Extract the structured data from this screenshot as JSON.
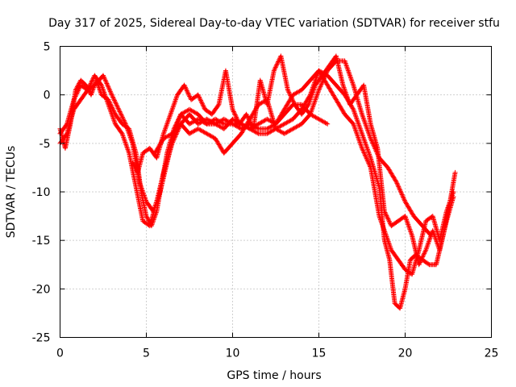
{
  "chart_data": {
    "type": "scatter",
    "title": "Day 317 of 2025, Sidereal Day-to-day VTEC variation (SDTVAR) for receiver stfu",
    "xlabel": "GPS time / hours",
    "ylabel": "SDTVAR / TECUs",
    "xlim": [
      0,
      25
    ],
    "ylim": [
      -25,
      5
    ],
    "xticks": [
      0,
      5,
      10,
      15,
      20,
      25
    ],
    "yticks": [
      -25,
      -20,
      -15,
      -10,
      -5,
      0,
      5
    ],
    "grid": true,
    "marker": "+",
    "color": "#ff0000",
    "series": [
      {
        "points": [
          [
            0.0,
            -3.5
          ],
          [
            0.3,
            -5.5
          ],
          [
            0.6,
            -3
          ],
          [
            0.9,
            0.5
          ],
          [
            1.2,
            1.5
          ],
          [
            1.5,
            1
          ],
          [
            1.8,
            0
          ],
          [
            2.1,
            1.5
          ],
          [
            2.4,
            0
          ],
          [
            2.8,
            -0.5
          ],
          [
            3.2,
            -2
          ],
          [
            3.6,
            -3
          ],
          [
            4.0,
            -3.5
          ],
          [
            4.4,
            -6
          ],
          [
            4.7,
            -10
          ],
          [
            5.0,
            -12.5
          ],
          [
            5.3,
            -13.5
          ],
          [
            5.6,
            -12
          ],
          [
            5.9,
            -9
          ],
          [
            6.2,
            -6
          ],
          [
            6.6,
            -3.5
          ],
          [
            7.0,
            -2
          ],
          [
            7.5,
            -3
          ],
          [
            8.0,
            -2.5
          ],
          [
            8.5,
            -3
          ],
          [
            9.0,
            -2.5
          ],
          [
            9.5,
            -3
          ],
          [
            10.0,
            -3
          ],
          [
            10.5,
            -3
          ],
          [
            11.0,
            -3.5
          ],
          [
            11.5,
            -4
          ],
          [
            12.0,
            -4
          ],
          [
            12.5,
            -3.5
          ],
          [
            13.0,
            -3
          ],
          [
            13.5,
            -2.5
          ],
          [
            14.0,
            -1.5
          ],
          [
            14.5,
            0
          ],
          [
            15.0,
            2.5
          ],
          [
            15.5,
            2
          ],
          [
            16.0,
            1
          ],
          [
            16.5,
            0
          ],
          [
            17.0,
            -1.5
          ],
          [
            17.5,
            -4
          ],
          [
            18.0,
            -6.5
          ],
          [
            18.5,
            -9.5
          ],
          [
            18.8,
            -15
          ],
          [
            19.1,
            -17
          ],
          [
            19.4,
            -21.5
          ],
          [
            19.7,
            -22
          ],
          [
            20.0,
            -20
          ],
          [
            20.3,
            -17
          ],
          [
            20.6,
            -16.5
          ],
          [
            21.0,
            -17
          ],
          [
            21.4,
            -17.5
          ],
          [
            21.8,
            -17.5
          ],
          [
            22.2,
            -14.5
          ],
          [
            22.6,
            -11
          ],
          [
            22.9,
            -8
          ]
        ]
      },
      {
        "points": [
          [
            0.0,
            -4
          ],
          [
            0.4,
            -3
          ],
          [
            0.8,
            -0.5
          ],
          [
            1.2,
            1
          ],
          [
            1.6,
            0.5
          ],
          [
            2.0,
            2
          ],
          [
            2.4,
            1
          ],
          [
            2.8,
            -1
          ],
          [
            3.2,
            -3
          ],
          [
            3.6,
            -4
          ],
          [
            4.0,
            -6
          ],
          [
            4.4,
            -9.5
          ],
          [
            4.8,
            -13
          ],
          [
            5.2,
            -13.5
          ],
          [
            5.6,
            -11
          ],
          [
            6.0,
            -8
          ],
          [
            6.5,
            -5
          ],
          [
            7.0,
            -3
          ],
          [
            7.5,
            -2
          ],
          [
            8.0,
            -3
          ],
          [
            8.5,
            -2.5
          ],
          [
            9.0,
            -3
          ],
          [
            9.5,
            -3.5
          ],
          [
            10.0,
            -2.5
          ],
          [
            10.5,
            -3
          ],
          [
            11.0,
            -3.5
          ],
          [
            11.5,
            -3
          ],
          [
            12.0,
            -2.5
          ],
          [
            12.5,
            -3
          ],
          [
            13.0,
            -1.5
          ],
          [
            13.5,
            0
          ],
          [
            14.0,
            0.5
          ],
          [
            14.5,
            1.5
          ],
          [
            15.0,
            2.5
          ],
          [
            15.5,
            1
          ],
          [
            16.0,
            -0.5
          ],
          [
            16.5,
            -2
          ],
          [
            17.0,
            -3
          ],
          [
            17.5,
            -5.5
          ],
          [
            18.0,
            -7.5
          ],
          [
            18.5,
            -12.5
          ],
          [
            18.8,
            -14
          ],
          [
            19.2,
            -16
          ],
          [
            19.6,
            -17
          ],
          [
            20.0,
            -18
          ],
          [
            20.4,
            -18.5
          ],
          [
            20.8,
            -16
          ],
          [
            21.2,
            -13
          ],
          [
            21.6,
            -12.5
          ],
          [
            22.0,
            -15
          ],
          [
            22.4,
            -12
          ],
          [
            22.8,
            -10
          ]
        ]
      },
      {
        "points": [
          [
            0.0,
            -5
          ],
          [
            0.4,
            -4
          ],
          [
            0.8,
            -1.5
          ],
          [
            1.2,
            -0.5
          ],
          [
            1.6,
            0.5
          ],
          [
            2.0,
            1
          ],
          [
            2.5,
            2
          ],
          [
            3.0,
            0
          ],
          [
            3.4,
            -1.5
          ],
          [
            3.8,
            -3
          ],
          [
            4.2,
            -5
          ],
          [
            4.6,
            -9
          ],
          [
            5.0,
            -11
          ],
          [
            5.4,
            -12
          ],
          [
            5.8,
            -10
          ],
          [
            6.2,
            -7
          ],
          [
            6.6,
            -4
          ],
          [
            7.0,
            -2
          ],
          [
            7.5,
            -1.5
          ],
          [
            8.0,
            -2
          ],
          [
            8.5,
            -3
          ],
          [
            9.0,
            -3
          ],
          [
            9.5,
            -2.5
          ],
          [
            10.0,
            -3
          ],
          [
            10.5,
            -3.5
          ],
          [
            11.0,
            -3
          ],
          [
            11.5,
            -3.5
          ],
          [
            12.0,
            -3.5
          ],
          [
            12.5,
            -3
          ],
          [
            13.0,
            -2
          ],
          [
            13.5,
            -1
          ],
          [
            14.0,
            -1
          ],
          [
            14.5,
            -2
          ],
          [
            15.0,
            -2.5
          ],
          [
            15.5,
            -3
          ]
        ]
      },
      {
        "points": [
          [
            5.5,
            -6
          ],
          [
            6.0,
            -4.5
          ],
          [
            6.5,
            -4
          ],
          [
            7.0,
            -3
          ],
          [
            7.5,
            -4
          ],
          [
            8.0,
            -3.5
          ],
          [
            8.5,
            -4
          ],
          [
            9.0,
            -4.5
          ],
          [
            9.5,
            -6
          ],
          [
            10.0,
            -5
          ],
          [
            10.5,
            -4
          ],
          [
            11.0,
            -2.5
          ],
          [
            11.5,
            -1
          ],
          [
            12.0,
            -0.5
          ],
          [
            12.5,
            -3.5
          ],
          [
            13.0,
            -4
          ],
          [
            13.5,
            -3.5
          ],
          [
            14.0,
            -3
          ],
          [
            14.5,
            -2
          ],
          [
            15.0,
            0.5
          ],
          [
            15.5,
            2.5
          ],
          [
            16.0,
            3.5
          ],
          [
            16.5,
            3.5
          ],
          [
            17.0,
            1
          ],
          [
            17.5,
            -2
          ],
          [
            18.0,
            -4.5
          ],
          [
            18.5,
            -6.5
          ],
          [
            19.0,
            -7.5
          ],
          [
            19.5,
            -9
          ],
          [
            20.0,
            -11
          ],
          [
            20.5,
            -12.5
          ],
          [
            21.0,
            -13.5
          ],
          [
            21.5,
            -14.5
          ]
        ]
      },
      {
        "points": [
          [
            4.2,
            -7
          ],
          [
            4.5,
            -8
          ],
          [
            4.8,
            -6
          ],
          [
            5.2,
            -5.5
          ],
          [
            5.6,
            -6.5
          ],
          [
            6.0,
            -4
          ],
          [
            6.4,
            -2
          ],
          [
            6.8,
            0
          ],
          [
            7.2,
            1
          ],
          [
            7.6,
            -0.5
          ],
          [
            8.0,
            0
          ],
          [
            8.4,
            -1.5
          ],
          [
            8.8,
            -2
          ],
          [
            9.2,
            -1
          ],
          [
            9.6,
            2.5
          ],
          [
            10.0,
            -1.5
          ],
          [
            10.4,
            -3
          ],
          [
            10.8,
            -2
          ],
          [
            11.2,
            -3.5
          ],
          [
            11.6,
            1.5
          ],
          [
            12.0,
            -1
          ],
          [
            12.4,
            2.5
          ],
          [
            12.8,
            4
          ],
          [
            13.2,
            0.5
          ],
          [
            13.6,
            -1
          ],
          [
            14.0,
            -2
          ],
          [
            14.4,
            -1
          ],
          [
            14.8,
            1
          ],
          [
            15.2,
            2
          ],
          [
            15.6,
            3
          ],
          [
            16.0,
            4
          ],
          [
            16.4,
            1
          ],
          [
            16.8,
            -1
          ],
          [
            17.2,
            0
          ],
          [
            17.6,
            1
          ],
          [
            18.0,
            -3
          ],
          [
            18.4,
            -5.5
          ],
          [
            18.8,
            -12
          ],
          [
            19.2,
            -13.5
          ],
          [
            19.6,
            -13
          ],
          [
            20.0,
            -12.5
          ],
          [
            20.4,
            -14.5
          ],
          [
            20.8,
            -17.5
          ],
          [
            21.2,
            -16
          ],
          [
            21.6,
            -14
          ],
          [
            22.0,
            -16
          ],
          [
            22.4,
            -13
          ],
          [
            22.8,
            -10.5
          ]
        ]
      }
    ]
  }
}
